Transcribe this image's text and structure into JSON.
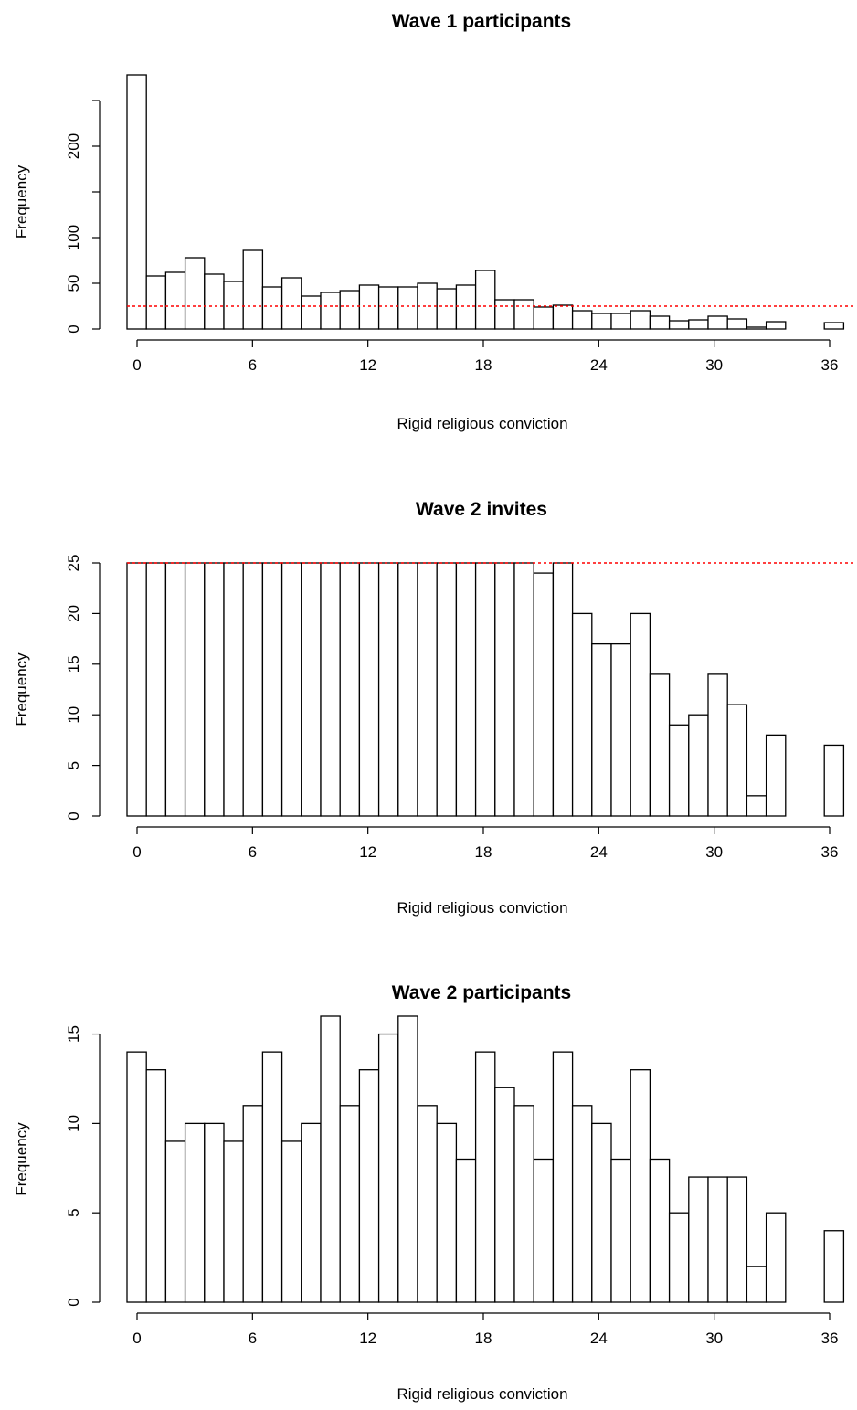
{
  "chart_data": [
    {
      "type": "bar",
      "title": "Wave 1 participants",
      "xlabel": "Rigid religious conviction",
      "ylabel": "Frequency",
      "x": [
        0,
        1,
        2,
        3,
        4,
        5,
        6,
        7,
        8,
        9,
        10,
        11,
        12,
        13,
        14,
        15,
        16,
        17,
        18,
        19,
        20,
        21,
        22,
        23,
        24,
        25,
        26,
        27,
        28,
        29,
        30,
        31,
        32,
        33,
        34,
        35,
        36
      ],
      "values": [
        278,
        58,
        62,
        78,
        60,
        52,
        86,
        46,
        56,
        36,
        40,
        42,
        48,
        46,
        46,
        50,
        44,
        48,
        64,
        32,
        32,
        24,
        26,
        20,
        17,
        17,
        20,
        14,
        9,
        10,
        14,
        11,
        2,
        8,
        0,
        0,
        7
      ],
      "xticks": [
        0,
        6,
        12,
        18,
        24,
        30,
        36
      ],
      "yticks": [
        0,
        50,
        100,
        200
      ],
      "ylim": [
        0,
        278
      ],
      "reference_line": {
        "y": 25,
        "color": "#ff0000",
        "style": "dotted"
      },
      "grid": false
    },
    {
      "type": "bar",
      "title": "Wave 2 invites",
      "xlabel": "Rigid religious conviction",
      "ylabel": "Frequency",
      "x": [
        0,
        1,
        2,
        3,
        4,
        5,
        6,
        7,
        8,
        9,
        10,
        11,
        12,
        13,
        14,
        15,
        16,
        17,
        18,
        19,
        20,
        21,
        22,
        23,
        24,
        25,
        26,
        27,
        28,
        29,
        30,
        31,
        32,
        33,
        34,
        35,
        36
      ],
      "values": [
        25,
        25,
        25,
        25,
        25,
        25,
        25,
        25,
        25,
        25,
        25,
        25,
        25,
        25,
        25,
        25,
        25,
        25,
        25,
        25,
        25,
        24,
        25,
        20,
        17,
        17,
        20,
        14,
        9,
        10,
        14,
        11,
        2,
        8,
        0,
        0,
        7
      ],
      "xticks": [
        0,
        6,
        12,
        18,
        24,
        30,
        36
      ],
      "yticks": [
        0,
        5,
        10,
        15,
        20,
        25
      ],
      "ylim": [
        0,
        25
      ],
      "reference_line": {
        "y": 25,
        "color": "#ff0000",
        "style": "dotted"
      },
      "grid": false
    },
    {
      "type": "bar",
      "title": "Wave 2 participants",
      "xlabel": "Rigid religious conviction",
      "ylabel": "Frequency",
      "x": [
        0,
        1,
        2,
        3,
        4,
        5,
        6,
        7,
        8,
        9,
        10,
        11,
        12,
        13,
        14,
        15,
        16,
        17,
        18,
        19,
        20,
        21,
        22,
        23,
        24,
        25,
        26,
        27,
        28,
        29,
        30,
        31,
        32,
        33,
        34,
        35,
        36
      ],
      "values": [
        14,
        13,
        9,
        10,
        10,
        9,
        11,
        14,
        9,
        10,
        16,
        11,
        13,
        15,
        16,
        11,
        10,
        8,
        14,
        12,
        11,
        8,
        14,
        11,
        10,
        8,
        13,
        8,
        5,
        7,
        7,
        7,
        2,
        5,
        0,
        0,
        4
      ],
      "xticks": [
        0,
        6,
        12,
        18,
        24,
        30,
        36
      ],
      "yticks": [
        0,
        5,
        10,
        15
      ],
      "ylim": [
        0,
        16
      ],
      "grid": false
    }
  ]
}
